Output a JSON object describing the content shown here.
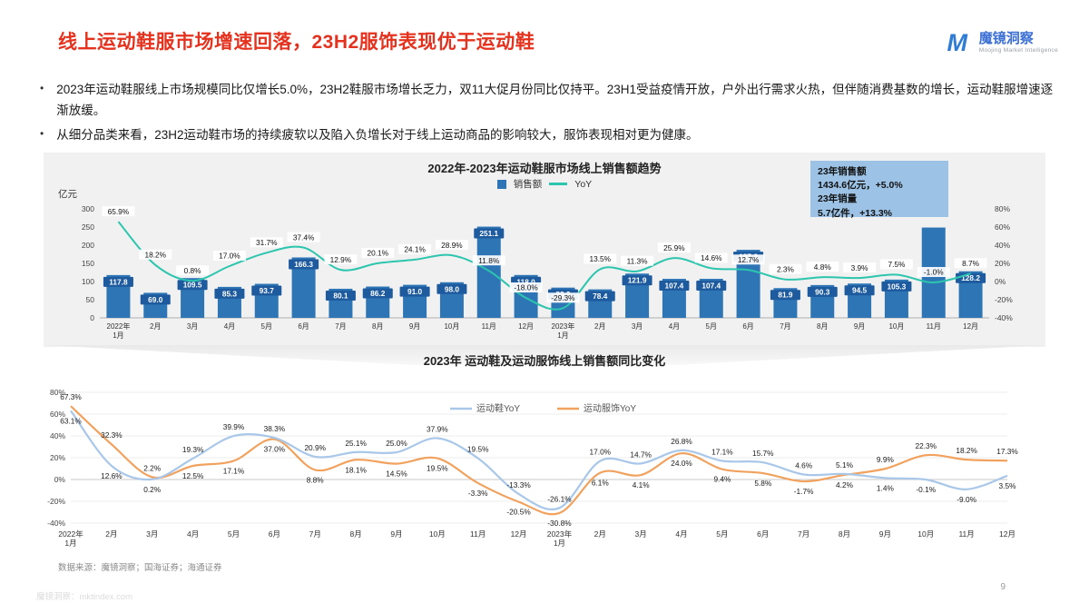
{
  "header": {
    "title": "线上运动鞋服市场增速回落，23H2服饰表现优于运动鞋",
    "logo": {
      "mark": "M",
      "name": "魔镜洞察",
      "subtitle": "Moojing Market Intelligence"
    }
  },
  "bullets_marker": "•",
  "bullets": [
    "2023年运动鞋服线上市场规模同比仅增长5.0%，23H2鞋服市场增长乏力，双11大促月份同比仅持平。23H1受益疫情开放，户外出行需求火热，但伴随消费基数的增长，运动鞋服增速逐渐放缓。",
    "从细分品类来看，23H2运动鞋市场的持续疲软以及陷入负增长对于线上运动商品的影响较大，服饰表现相对更为健康。"
  ],
  "annotation": {
    "lines": [
      "23年销售额",
      "1434.6亿元，+5.0%",
      "23年销量",
      "5.7亿件，+13.3%"
    ]
  },
  "footer": {
    "source": "数据来源：魔镜洞察；国海证券；海通证券",
    "watermark": "魔镜洞察：mktindex.com",
    "page": "9"
  },
  "colors": {
    "accent_red": "#e5321e",
    "bar_blue": "#2e75b6",
    "bar_label_bg": "#1d5a9e",
    "yoy_teal": "#2cc5ae",
    "annotation_bg": "#9cc2e5",
    "shoes_line": "#a9c7e9",
    "apparel_line": "#f1a25e",
    "logo_blue": "#2e7cd6"
  },
  "chart_data": [
    {
      "type": "bar",
      "title": "2022年-2023年运动鞋服市场线上销售额趋势",
      "ylabel_left": "亿元",
      "ylim_left": [
        0,
        300
      ],
      "ylim_right_pct": [
        -40,
        80
      ],
      "legend": [
        "销售额",
        "YoY"
      ],
      "bar_color": "#2e75b6",
      "line_color": "#2cc5ae",
      "categories": [
        "2022年1月",
        "2月",
        "3月",
        "4月",
        "5月",
        "6月",
        "7月",
        "8月",
        "9月",
        "10月",
        "11月",
        "12月",
        "2023年1月",
        "2月",
        "3月",
        "4月",
        "5月",
        "6月",
        "7月",
        "8月",
        "9月",
        "10月",
        "11月",
        "12月"
      ],
      "sales": [
        117.8,
        69.0,
        109.5,
        85.3,
        93.7,
        166.3,
        80.1,
        86.2,
        91.0,
        98.0,
        251.1,
        118.0,
        83.3,
        78.4,
        121.9,
        107.4,
        107.4,
        187.3,
        81.9,
        90.3,
        94.5,
        105.3,
        248.6,
        128.2
      ],
      "sales_labels": [
        "117.8",
        "69.0",
        "109.5",
        "85.3",
        "93.7",
        "166.3",
        "80.1",
        "86.2",
        "91.0",
        "98.0",
        "251.1",
        "118.0",
        "83.3",
        "78.4",
        "121.9",
        "107.4",
        "107.4",
        "187.3",
        "81.9",
        "90.3",
        "94.5",
        "105.3",
        "",
        "128.2"
      ],
      "yoy_pct": [
        65.9,
        18.2,
        0.8,
        17.0,
        31.7,
        37.4,
        12.9,
        20.1,
        24.1,
        28.9,
        11.8,
        -18.0,
        -29.3,
        13.5,
        11.3,
        25.9,
        14.6,
        12.7,
        2.3,
        4.8,
        3.9,
        7.5,
        -1.0,
        8.7
      ]
    },
    {
      "type": "line",
      "title": "2023年 运动鞋及运动服饰线上销售额同比变化",
      "ylim_pct": [
        -40,
        80
      ],
      "legend_position": "top-center",
      "grid": true,
      "categories": [
        "2022年1月",
        "2月",
        "3月",
        "4月",
        "5月",
        "6月",
        "7月",
        "8月",
        "9月",
        "10月",
        "11月",
        "12月",
        "2023年1月",
        "2月",
        "3月",
        "4月",
        "5月",
        "6月",
        "7月",
        "8月",
        "9月",
        "10月",
        "11月",
        "12月"
      ],
      "series": [
        {
          "name": "运动鞋YoY",
          "color": "#a9c7e9",
          "values": [
            63.1,
            12.6,
            0.2,
            19.3,
            39.9,
            38.3,
            20.9,
            25.1,
            25.0,
            37.9,
            19.5,
            -13.3,
            -26.1,
            17.0,
            14.7,
            26.8,
            17.1,
            15.7,
            4.6,
            5.1,
            1.4,
            -0.1,
            -9.0,
            3.5
          ]
        },
        {
          "name": "运动服饰YoY",
          "color": "#f1a25e",
          "values": [
            67.3,
            32.3,
            2.2,
            12.5,
            17.1,
            37.0,
            8.8,
            18.1,
            14.5,
            19.5,
            -3.3,
            -20.5,
            -30.8,
            6.1,
            4.1,
            24.0,
            9.4,
            5.8,
            -1.7,
            4.2,
            9.9,
            22.3,
            18.2,
            17.3
          ]
        }
      ]
    }
  ]
}
